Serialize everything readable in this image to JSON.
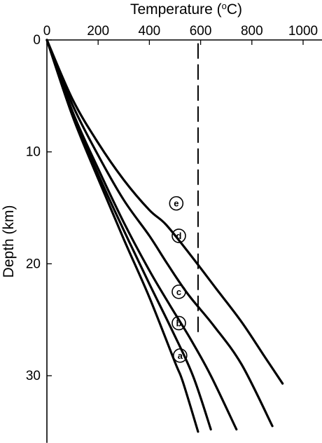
{
  "chart_data": {
    "type": "line",
    "title": "",
    "xlabel": "Temperature (°C)",
    "xlabel_parts": {
      "prefix": "Temperature (",
      "sup": "o",
      "suffix": "C)"
    },
    "ylabel": "Depth (km)",
    "xlim": [
      0,
      1080
    ],
    "ylim": [
      0,
      36
    ],
    "y_inverted": true,
    "x_axis_position": "top",
    "grid": false,
    "x_ticks": [
      0,
      200,
      400,
      600,
      800,
      1000
    ],
    "y_ticks": [
      0,
      10,
      20,
      30
    ],
    "x_tick_labels": [
      "0",
      "200",
      "400",
      "600",
      "800",
      "1000"
    ],
    "y_tick_labels": [
      "0",
      "10",
      "20",
      "30"
    ],
    "reference_line": {
      "style": "dashed",
      "x": 590,
      "label": ""
    },
    "series": [
      {
        "name": "a",
        "x": [
          0,
          100,
          200,
          300,
          400,
          500,
          530,
          590
        ],
        "y": [
          0,
          6.8,
          12.4,
          17.8,
          23.0,
          28.8,
          30.5,
          35.0
        ],
        "label_at": {
          "x": 520,
          "y": 28.2
        }
      },
      {
        "name": "b",
        "x": [
          0,
          100,
          200,
          300,
          400,
          490,
          570,
          640
        ],
        "y": [
          0,
          6.6,
          12.0,
          17.0,
          21.8,
          26.0,
          30.0,
          34.8
        ],
        "label_at": {
          "x": 515,
          "y": 25.3
        }
      },
      {
        "name": "c",
        "x": [
          0,
          100,
          200,
          300,
          400,
          480,
          560,
          640,
          740
        ],
        "y": [
          0,
          6.4,
          11.5,
          16.3,
          20.6,
          23.7,
          26.7,
          30.0,
          34.8
        ],
        "label_at": {
          "x": 515,
          "y": 22.5
        }
      },
      {
        "name": "d",
        "x": [
          0,
          100,
          200,
          300,
          400,
          470,
          550,
          650,
          760,
          880
        ],
        "y": [
          0,
          5.8,
          10.3,
          14.3,
          17.5,
          20.0,
          22.7,
          25.5,
          29.0,
          34.5
        ],
        "label_at": {
          "x": 515,
          "y": 17.5
        }
      },
      {
        "name": "e",
        "x": [
          0,
          100,
          200,
          300,
          400,
          465,
          560,
          660,
          760,
          850,
          920
        ],
        "y": [
          0,
          5.3,
          9.2,
          12.5,
          15.2,
          16.5,
          19.2,
          22.2,
          25.2,
          28.3,
          30.7
        ],
        "label_at": {
          "x": 505,
          "y": 14.6
        }
      }
    ]
  }
}
